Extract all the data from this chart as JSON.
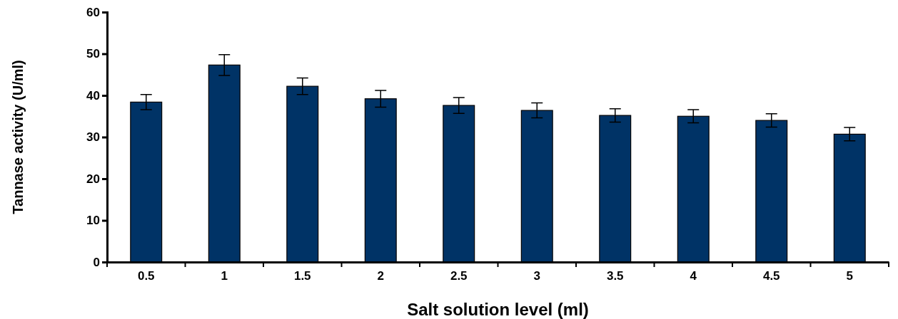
{
  "chart_data": {
    "type": "bar",
    "xlabel": "Salt solution level (ml)",
    "ylabel": "Tannase activity (U/ml)",
    "categories": [
      "0.5",
      "1",
      "1.5",
      "2",
      "2.5",
      "3",
      "3.5",
      "4",
      "4.5",
      "5"
    ],
    "values": [
      38.4,
      47.3,
      42.2,
      39.2,
      37.6,
      36.4,
      35.2,
      35.0,
      34.0,
      30.7
    ],
    "errors": [
      1.8,
      2.5,
      2,
      2,
      1.9,
      1.8,
      1.6,
      1.6,
      1.6,
      1.6
    ],
    "color": "#003366",
    "ylim": [
      0,
      60
    ],
    "yticks": [
      0,
      10,
      20,
      30,
      40,
      50,
      60
    ],
    "grid": false
  }
}
